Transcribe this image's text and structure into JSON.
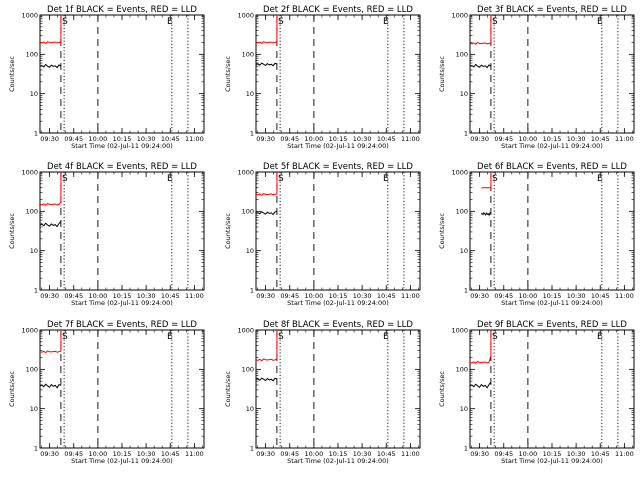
{
  "figure": {
    "start_time_label": "Start Time (02-Jul-11 09:24:00)",
    "ylabel": "Counts/sec"
  },
  "colors": {
    "events": "#000000",
    "lld": "#ff0000",
    "background": "#ffffff"
  },
  "chart_data": [
    {
      "type": "line",
      "title": "Det 1f BLACK = Events, RED = LLD",
      "xlabel": "Start Time (02-Jul-11 09:24:00)",
      "ylabel": "Counts/sec",
      "x_tick_labels": [
        "09:30",
        "09:45",
        "10:00",
        "10:15",
        "10:30",
        "10:45",
        "11:00"
      ],
      "y_tick_labels": [
        "1",
        "10",
        "100",
        "1000"
      ],
      "xlim": [
        "09:24",
        "11:06"
      ],
      "ylim": [
        1,
        1000
      ],
      "y_scale": "log",
      "grid": false,
      "x_range": [
        "09:24",
        "09:37"
      ],
      "events": [
        50,
        52,
        48,
        55,
        50,
        47,
        53,
        49,
        51,
        46,
        54,
        50
      ],
      "lld": [
        200,
        195,
        205,
        190,
        210,
        200,
        198,
        202,
        205,
        195,
        200,
        207
      ],
      "jump_end": 1000,
      "dashed_lines": [
        "09:37",
        "10:00"
      ],
      "dotted_lines": [
        "09:39",
        "10:46",
        "10:56"
      ],
      "markers": [
        {
          "symbol": "S",
          "x": "09:37"
        },
        {
          "symbol": "E",
          "x": "10:46"
        }
      ]
    },
    {
      "type": "line",
      "title": "Det 2f BLACK = Events, RED = LLD",
      "xlabel": "Start Time (02-Jul-11 09:24:00)",
      "ylabel": "Counts/sec",
      "x_tick_labels": [
        "09:30",
        "09:45",
        "10:00",
        "10:15",
        "10:30",
        "10:45",
        "11:00"
      ],
      "y_tick_labels": [
        "1",
        "10",
        "100",
        "1000"
      ],
      "xlim": [
        "09:24",
        "11:06"
      ],
      "ylim": [
        1,
        1000
      ],
      "y_scale": "log",
      "grid": false,
      "x_range": [
        "09:24",
        "09:37"
      ],
      "events": [
        55,
        57,
        53,
        60,
        56,
        52,
        58,
        54,
        56,
        51,
        59,
        56
      ],
      "lld": [
        200,
        195,
        205,
        190,
        210,
        200,
        198,
        202,
        205,
        195,
        200,
        207
      ],
      "jump_end": 1000,
      "dashed_lines": [
        "09:37",
        "10:00"
      ],
      "dotted_lines": [
        "09:39",
        "10:46",
        "10:56"
      ],
      "markers": [
        {
          "symbol": "S",
          "x": "09:37"
        },
        {
          "symbol": "E",
          "x": "10:46"
        }
      ]
    },
    {
      "type": "line",
      "title": "Det 3f BLACK = Events, RED = LLD",
      "xlabel": "Start Time (02-Jul-11 09:24:00)",
      "ylabel": "Counts/sec",
      "x_tick_labels": [
        "09:30",
        "09:45",
        "10:00",
        "10:15",
        "10:30",
        "10:45",
        "11:00"
      ],
      "y_tick_labels": [
        "1",
        "10",
        "100",
        "1000"
      ],
      "xlim": [
        "09:24",
        "11:06"
      ],
      "ylim": [
        1,
        1000
      ],
      "y_scale": "log",
      "grid": false,
      "x_range": [
        "09:24",
        "09:37"
      ],
      "events": [
        50,
        52,
        48,
        55,
        50,
        47,
        53,
        49,
        51,
        46,
        54,
        50
      ],
      "lld": [
        190,
        185,
        195,
        180,
        200,
        190,
        188,
        192,
        195,
        185,
        190,
        197
      ],
      "jump_end": 1000,
      "dashed_lines": [
        "09:37",
        "10:00"
      ],
      "dotted_lines": [
        "09:39",
        "10:46",
        "10:56"
      ],
      "markers": [
        {
          "symbol": "S",
          "x": "09:37"
        },
        {
          "symbol": "E",
          "x": "10:46"
        }
      ]
    },
    {
      "type": "line",
      "title": "Det 4f BLACK = Events, RED = LLD",
      "xlabel": "Start Time (02-Jul-11 09:24:00)",
      "ylabel": "Counts/sec",
      "x_tick_labels": [
        "09:30",
        "09:45",
        "10:00",
        "10:15",
        "10:30",
        "10:45",
        "11:00"
      ],
      "y_tick_labels": [
        "1",
        "10",
        "100",
        "1000"
      ],
      "xlim": [
        "09:24",
        "11:06"
      ],
      "ylim": [
        1,
        1000
      ],
      "y_scale": "log",
      "grid": false,
      "x_range": [
        "09:24",
        "09:37"
      ],
      "events": [
        45,
        47,
        43,
        50,
        45,
        42,
        48,
        44,
        46,
        41,
        49,
        55
      ],
      "lld": [
        150,
        146,
        154,
        143,
        158,
        150,
        149,
        152,
        154,
        146,
        150,
        175
      ],
      "jump_end": 1000,
      "dashed_lines": [
        "09:37",
        "10:00"
      ],
      "dotted_lines": [
        "09:39",
        "10:46",
        "10:56"
      ],
      "markers": [
        {
          "symbol": "S",
          "x": "09:37"
        },
        {
          "symbol": "E",
          "x": "10:46"
        }
      ]
    },
    {
      "type": "line",
      "title": "Det 5f BLACK = Events, RED = LLD",
      "xlabel": "Start Time (02-Jul-11 09:24:00)",
      "ylabel": "Counts/sec",
      "x_tick_labels": [
        "09:30",
        "09:45",
        "10:00",
        "10:15",
        "10:30",
        "10:45",
        "11:00"
      ],
      "y_tick_labels": [
        "1",
        "10",
        "100",
        "1000"
      ],
      "xlim": [
        "09:24",
        "11:06"
      ],
      "ylim": [
        1,
        1000
      ],
      "y_scale": "log",
      "grid": false,
      "x_range": [
        "09:24",
        "09:37"
      ],
      "events": [
        90,
        93,
        87,
        98,
        90,
        85,
        95,
        88,
        92,
        83,
        97,
        100
      ],
      "lld": [
        270,
        263,
        277,
        257,
        284,
        270,
        267,
        273,
        277,
        263,
        270,
        279
      ],
      "jump_end": 1000,
      "dashed_lines": [
        "09:37",
        "10:00"
      ],
      "dotted_lines": [
        "09:39",
        "10:46",
        "10:56"
      ],
      "markers": [
        {
          "symbol": "S",
          "x": "09:37"
        },
        {
          "symbol": "E",
          "x": "10:46"
        }
      ]
    },
    {
      "type": "line",
      "title": "Det 6f BLACK = Events, RED = LLD",
      "xlabel": "Start Time (02-Jul-11 09:24:00)",
      "ylabel": "Counts/sec",
      "x_tick_labels": [
        "09:30",
        "09:45",
        "10:00",
        "10:15",
        "10:30",
        "10:45",
        "11:00"
      ],
      "y_tick_labels": [
        "1",
        "10",
        "100",
        "1000"
      ],
      "xlim": [
        "09:24",
        "11:06"
      ],
      "ylim": [
        1,
        1000
      ],
      "y_scale": "log",
      "grid": false,
      "x_range": [
        "09:31",
        "09:37"
      ],
      "events": [
        85,
        88,
        83,
        92,
        86,
        81,
        90,
        84,
        87,
        80,
        91,
        95
      ],
      "lld": [
        400,
        400,
        400,
        400,
        400,
        400,
        400,
        400,
        400,
        400,
        400,
        400
      ],
      "jump_end": 1000,
      "dashed_lines": [
        "09:37",
        "10:00"
      ],
      "dotted_lines": [
        "09:39",
        "10:46",
        "10:56"
      ],
      "markers": [
        {
          "symbol": "S",
          "x": "09:37"
        },
        {
          "symbol": "E",
          "x": "10:46"
        }
      ]
    },
    {
      "type": "line",
      "title": "Det 7f BLACK = Events, RED = LLD",
      "xlabel": "Start Time (02-Jul-11 09:24:00)",
      "ylabel": "Counts/sec",
      "x_tick_labels": [
        "09:30",
        "09:45",
        "10:00",
        "10:15",
        "10:30",
        "10:45",
        "11:00"
      ],
      "y_tick_labels": [
        "1",
        "10",
        "100",
        "1000"
      ],
      "xlim": [
        "09:24",
        "11:06"
      ],
      "ylim": [
        1,
        1000
      ],
      "y_scale": "log",
      "grid": false,
      "x_range": [
        "09:24",
        "09:37"
      ],
      "events": [
        38,
        40,
        36,
        42,
        38,
        35,
        41,
        37,
        39,
        34,
        41,
        39
      ],
      "lld": [
        280,
        273,
        287,
        266,
        294,
        280,
        277,
        283,
        287,
        273,
        280,
        290
      ],
      "jump_end": 1000,
      "dashed_lines": [
        "09:37",
        "10:00"
      ],
      "dotted_lines": [
        "09:39",
        "10:46",
        "10:56"
      ],
      "markers": [
        {
          "symbol": "S",
          "x": "09:37"
        },
        {
          "symbol": "E",
          "x": "10:46"
        }
      ]
    },
    {
      "type": "line",
      "title": "Det 8f BLACK = Events, RED = LLD",
      "xlabel": "Start Time (02-Jul-11 09:24:00)",
      "ylabel": "Counts/sec",
      "x_tick_labels": [
        "09:30",
        "09:45",
        "10:00",
        "10:15",
        "10:30",
        "10:45",
        "11:00"
      ],
      "y_tick_labels": [
        "1",
        "10",
        "100",
        "1000"
      ],
      "xlim": [
        "09:24",
        "11:06"
      ],
      "ylim": [
        1,
        1000
      ],
      "y_scale": "log",
      "grid": false,
      "x_range": [
        "09:24",
        "09:37"
      ],
      "events": [
        55,
        57,
        53,
        60,
        56,
        52,
        58,
        54,
        56,
        51,
        59,
        56
      ],
      "lld": [
        175,
        170,
        180,
        166,
        184,
        175,
        173,
        177,
        180,
        170,
        175,
        181
      ],
      "jump_end": 1000,
      "dashed_lines": [
        "09:37",
        "10:00"
      ],
      "dotted_lines": [
        "09:39",
        "10:46",
        "10:56"
      ],
      "markers": [
        {
          "symbol": "S",
          "x": "09:37"
        },
        {
          "symbol": "E",
          "x": "10:46"
        }
      ]
    },
    {
      "type": "line",
      "title": "Det 9f BLACK = Events, RED = LLD",
      "xlabel": "Start Time (02-Jul-11 09:24:00)",
      "ylabel": "Counts/sec",
      "x_tick_labels": [
        "09:30",
        "09:45",
        "10:00",
        "10:15",
        "10:30",
        "10:45",
        "11:00"
      ],
      "y_tick_labels": [
        "1",
        "10",
        "100",
        "1000"
      ],
      "xlim": [
        "09:24",
        "11:06"
      ],
      "ylim": [
        1,
        1000
      ],
      "y_scale": "log",
      "grid": false,
      "x_range": [
        "09:24",
        "09:37"
      ],
      "events": [
        38,
        40,
        36,
        42,
        38,
        35,
        41,
        37,
        39,
        34,
        41,
        48
      ],
      "lld": [
        150,
        146,
        154,
        143,
        158,
        150,
        149,
        152,
        154,
        146,
        150,
        220
      ],
      "jump_end": 1000,
      "dashed_lines": [
        "09:37",
        "10:00"
      ],
      "dotted_lines": [
        "09:39",
        "10:46",
        "10:56"
      ],
      "markers": [
        {
          "symbol": "S",
          "x": "09:37"
        },
        {
          "symbol": "E",
          "x": "10:46"
        }
      ]
    }
  ]
}
